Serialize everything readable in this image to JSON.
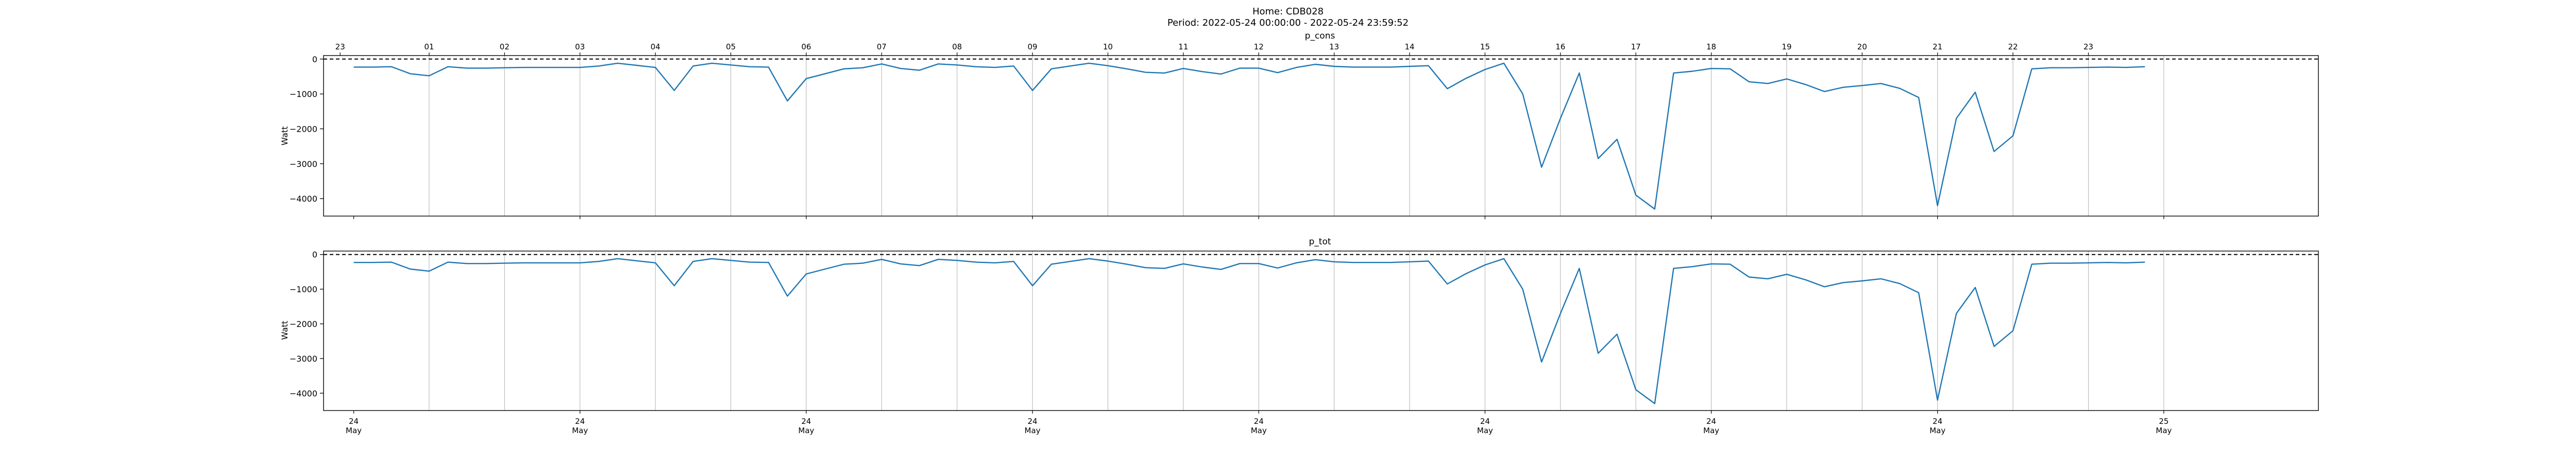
{
  "header": {
    "title_line1": "Home: CDB028",
    "title_line2": "Period: 2022-05-24 00:00:00 - 2022-05-24 23:59:52"
  },
  "colors": {
    "line": "#1f77b4",
    "grid": "#b0b0b0",
    "zero_line": "#000000"
  },
  "chart_data": [
    {
      "type": "line",
      "title": "p_cons",
      "ylabel": "Watt",
      "xlabel": "",
      "x": [
        "00:00",
        "00:15",
        "00:30",
        "00:45",
        "01:00",
        "01:15",
        "01:30",
        "01:45",
        "02:00",
        "02:15",
        "02:30",
        "02:45",
        "03:00",
        "03:15",
        "03:30",
        "03:45",
        "04:00",
        "04:15",
        "04:30",
        "04:45",
        "05:00",
        "05:15",
        "05:30",
        "05:45",
        "06:00",
        "06:15",
        "06:30",
        "06:45",
        "07:00",
        "07:15",
        "07:30",
        "07:45",
        "08:00",
        "08:15",
        "08:30",
        "08:45",
        "09:00",
        "09:15",
        "09:30",
        "09:45",
        "10:00",
        "10:15",
        "10:30",
        "10:45",
        "11:00",
        "11:15",
        "11:30",
        "11:45",
        "12:00",
        "12:15",
        "12:30",
        "12:45",
        "13:00",
        "13:15",
        "13:30",
        "13:45",
        "14:00",
        "14:15",
        "14:30",
        "14:45",
        "15:00",
        "15:15",
        "15:30",
        "15:45",
        "16:00",
        "16:15",
        "16:30",
        "16:45",
        "17:00",
        "17:15",
        "17:30",
        "17:45",
        "18:00",
        "18:15",
        "18:30",
        "18:45",
        "19:00",
        "19:15",
        "19:30",
        "19:45",
        "20:00",
        "20:15",
        "20:30",
        "20:45",
        "21:00",
        "21:15",
        "21:30",
        "21:45",
        "22:00",
        "22:15",
        "22:30",
        "22:45",
        "23:00",
        "23:15",
        "23:30",
        "23:45"
      ],
      "values": [
        -230,
        -230,
        -220,
        -420,
        -480,
        -220,
        -260,
        -260,
        -250,
        -240,
        -240,
        -240,
        -240,
        -200,
        -120,
        -180,
        -240,
        -900,
        -200,
        -120,
        -170,
        -220,
        -230,
        -1200,
        -560,
        -420,
        -280,
        -250,
        -140,
        -270,
        -320,
        -140,
        -170,
        -220,
        -240,
        -200,
        -900,
        -280,
        -200,
        -120,
        -190,
        -280,
        -380,
        -400,
        -270,
        -360,
        -430,
        -260,
        -260,
        -390,
        -240,
        -150,
        -210,
        -230,
        -230,
        -230,
        -210,
        -190,
        -850,
        -550,
        -300,
        -120,
        -1000,
        -3100,
        -1700,
        -400,
        -2850,
        -2300,
        -3900,
        -4300,
        -400,
        -350,
        -270,
        -280,
        -650,
        -700,
        -570,
        -730,
        -930,
        -810,
        -760,
        -700,
        -840,
        -1100,
        -4200,
        -1700,
        -950,
        -2650,
        -2200,
        -280,
        -250,
        -250,
        -240,
        -230,
        -240,
        -220
      ],
      "ylim": [
        -4500,
        100
      ],
      "yticks": [
        0,
        -1000,
        -2000,
        -3000,
        -4000
      ],
      "ytick_labels": [
        "0",
        "−1000",
        "−2000",
        "−3000",
        "−4000"
      ],
      "top_tick_labels": [
        "23",
        "01",
        "02",
        "03",
        "04",
        "05",
        "06",
        "07",
        "08",
        "09",
        "10",
        "11",
        "12",
        "13",
        "14",
        "15",
        "16",
        "17",
        "18",
        "19",
        "20",
        "21",
        "22",
        "23"
      ],
      "bottom_tick_labels": [],
      "zero_line": "dashed",
      "grid": "vertical"
    },
    {
      "type": "line",
      "title": "p_tot",
      "ylabel": "Watt",
      "xlabel": "",
      "x": [
        "00:00",
        "00:15",
        "00:30",
        "00:45",
        "01:00",
        "01:15",
        "01:30",
        "01:45",
        "02:00",
        "02:15",
        "02:30",
        "02:45",
        "03:00",
        "03:15",
        "03:30",
        "03:45",
        "04:00",
        "04:15",
        "04:30",
        "04:45",
        "05:00",
        "05:15",
        "05:30",
        "05:45",
        "06:00",
        "06:15",
        "06:30",
        "06:45",
        "07:00",
        "07:15",
        "07:30",
        "07:45",
        "08:00",
        "08:15",
        "08:30",
        "08:45",
        "09:00",
        "09:15",
        "09:30",
        "09:45",
        "10:00",
        "10:15",
        "10:30",
        "10:45",
        "11:00",
        "11:15",
        "11:30",
        "11:45",
        "12:00",
        "12:15",
        "12:30",
        "12:45",
        "13:00",
        "13:15",
        "13:30",
        "13:45",
        "14:00",
        "14:15",
        "14:30",
        "14:45",
        "15:00",
        "15:15",
        "15:30",
        "15:45",
        "16:00",
        "16:15",
        "16:30",
        "16:45",
        "17:00",
        "17:15",
        "17:30",
        "17:45",
        "18:00",
        "18:15",
        "18:30",
        "18:45",
        "19:00",
        "19:15",
        "19:30",
        "19:45",
        "20:00",
        "20:15",
        "20:30",
        "20:45",
        "21:00",
        "21:15",
        "21:30",
        "21:45",
        "22:00",
        "22:15",
        "22:30",
        "22:45",
        "23:00",
        "23:15",
        "23:30",
        "23:45"
      ],
      "values": [
        -230,
        -230,
        -220,
        -420,
        -480,
        -220,
        -260,
        -260,
        -250,
        -240,
        -240,
        -240,
        -240,
        -200,
        -120,
        -180,
        -240,
        -900,
        -200,
        -120,
        -170,
        -220,
        -230,
        -1200,
        -560,
        -420,
        -280,
        -250,
        -140,
        -270,
        -320,
        -140,
        -170,
        -220,
        -240,
        -200,
        -900,
        -280,
        -200,
        -120,
        -190,
        -280,
        -380,
        -400,
        -270,
        -360,
        -430,
        -260,
        -260,
        -390,
        -240,
        -150,
        -210,
        -230,
        -230,
        -230,
        -210,
        -190,
        -850,
        -550,
        -300,
        -120,
        -1000,
        -3100,
        -1700,
        -400,
        -2850,
        -2300,
        -3900,
        -4300,
        -400,
        -350,
        -270,
        -280,
        -650,
        -700,
        -570,
        -730,
        -930,
        -810,
        -760,
        -700,
        -840,
        -1100,
        -4200,
        -1700,
        -950,
        -2650,
        -2200,
        -280,
        -250,
        -250,
        -240,
        -230,
        -240,
        -220
      ],
      "ylim": [
        -4500,
        100
      ],
      "yticks": [
        0,
        -1000,
        -2000,
        -3000,
        -4000
      ],
      "ytick_labels": [
        "0",
        "−1000",
        "−2000",
        "−3000",
        "−4000"
      ],
      "top_tick_labels": [],
      "bottom_tick_labels": [
        {
          "day": "24",
          "month": "May"
        },
        {
          "day": "24",
          "month": "May"
        },
        {
          "day": "24",
          "month": "May"
        },
        {
          "day": "24",
          "month": "May"
        },
        {
          "day": "24",
          "month": "May"
        },
        {
          "day": "24",
          "month": "May"
        },
        {
          "day": "24",
          "month": "May"
        },
        {
          "day": "24",
          "month": "May"
        },
        {
          "day": "25",
          "month": "May"
        }
      ],
      "zero_line": "dashed",
      "grid": "vertical"
    }
  ]
}
